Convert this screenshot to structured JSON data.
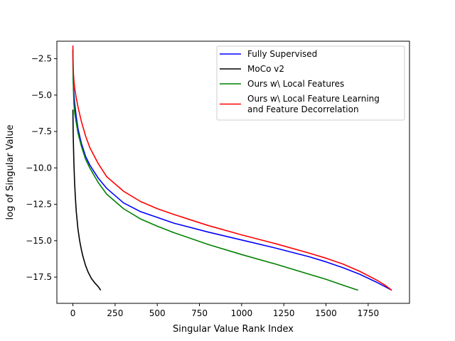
{
  "chart_data": {
    "type": "line",
    "xlabel": "Singular Value Rank Index",
    "ylabel": "log of Singular Value",
    "xlim": [
      -95,
      1995
    ],
    "ylim": [
      -19.3,
      -1.3
    ],
    "xticks": [
      0,
      250,
      500,
      750,
      1000,
      1250,
      1500,
      1750
    ],
    "yticks": [
      -2.5,
      -5.0,
      -7.5,
      -10.0,
      -12.5,
      -15.0,
      -17.5
    ],
    "xtick_labels": [
      "0",
      "250",
      "500",
      "750",
      "1000",
      "1250",
      "1500",
      "1750"
    ],
    "ytick_labels": [
      "−2.5",
      "−5.0",
      "−7.5",
      "−10.0",
      "−12.5",
      "−15.0",
      "−17.5"
    ],
    "grid": false,
    "legend_position": "top-right",
    "series": [
      {
        "name": "Fully Supervised",
        "color": "#0000ff",
        "x": [
          0,
          1,
          3,
          6,
          10,
          20,
          30,
          50,
          75,
          100,
          150,
          200,
          300,
          400,
          500,
          600,
          800,
          1000,
          1200,
          1400,
          1500,
          1600,
          1700,
          1800,
          1850,
          1890
        ],
        "y": [
          -1.9,
          -3.5,
          -4.3,
          -4.9,
          -5.5,
          -6.5,
          -7.3,
          -8.3,
          -9.2,
          -9.8,
          -10.7,
          -11.4,
          -12.4,
          -13.0,
          -13.4,
          -13.8,
          -14.4,
          -14.95,
          -15.5,
          -16.1,
          -16.45,
          -16.85,
          -17.3,
          -17.85,
          -18.15,
          -18.4
        ]
      },
      {
        "name": "MoCo v2",
        "color": "#000000",
        "x": [
          0,
          1,
          2,
          4,
          6,
          10,
          15,
          20,
          30,
          40,
          50,
          60,
          75,
          90,
          110,
          130,
          150,
          165
        ],
        "y": [
          -6.0,
          -7.0,
          -7.8,
          -8.8,
          -9.7,
          -11.0,
          -12.1,
          -13.0,
          -14.2,
          -15.0,
          -15.6,
          -16.1,
          -16.7,
          -17.15,
          -17.6,
          -17.9,
          -18.15,
          -18.4
        ]
      },
      {
        "name": "Ours w\\ Local Features",
        "color": "#008000",
        "x": [
          0,
          1,
          3,
          6,
          10,
          20,
          30,
          50,
          75,
          100,
          150,
          200,
          300,
          400,
          500,
          600,
          800,
          1000,
          1200,
          1400,
          1500,
          1600,
          1690
        ],
        "y": [
          -1.9,
          -3.4,
          -4.6,
          -5.6,
          -6.2,
          -6.9,
          -7.6,
          -8.5,
          -9.4,
          -10.0,
          -11.0,
          -11.8,
          -12.8,
          -13.5,
          -14.0,
          -14.45,
          -15.25,
          -15.95,
          -16.6,
          -17.3,
          -17.65,
          -18.05,
          -18.4
        ]
      },
      {
        "name": "Ours w\\ Local Feature Learning\nand Feature Decorrelation",
        "color": "#ff0000",
        "x": [
          0,
          1,
          3,
          6,
          10,
          20,
          30,
          50,
          75,
          100,
          150,
          200,
          300,
          400,
          500,
          600,
          800,
          1000,
          1200,
          1400,
          1500,
          1600,
          1700,
          1800,
          1850,
          1890
        ],
        "y": [
          -1.6,
          -2.6,
          -3.5,
          -4.0,
          -4.5,
          -5.2,
          -5.8,
          -6.8,
          -7.8,
          -8.6,
          -9.7,
          -10.6,
          -11.6,
          -12.3,
          -12.8,
          -13.2,
          -13.95,
          -14.6,
          -15.2,
          -15.85,
          -16.2,
          -16.6,
          -17.1,
          -17.7,
          -18.05,
          -18.4
        ]
      }
    ]
  }
}
